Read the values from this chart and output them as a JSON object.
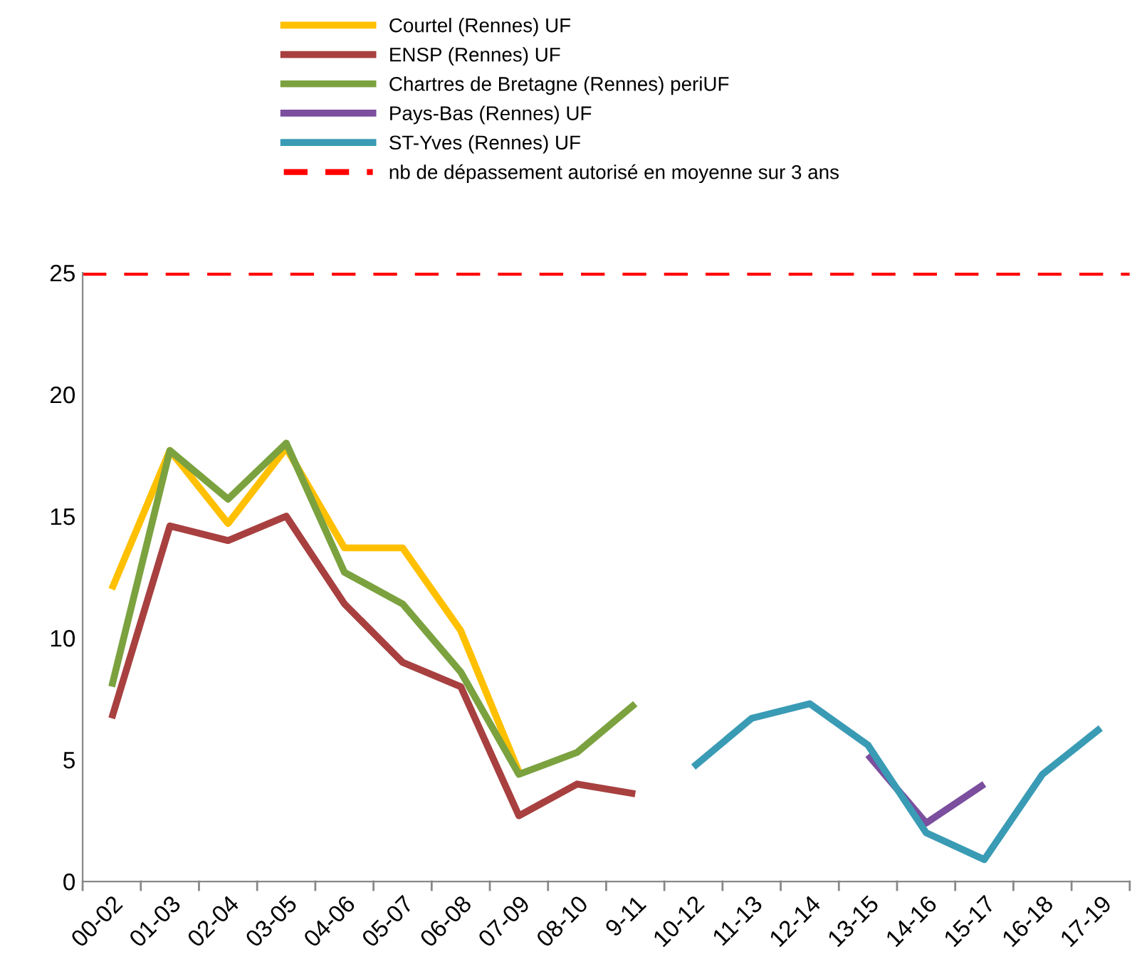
{
  "chart_data": {
    "type": "line",
    "categories": [
      "00-02",
      "01-03",
      "02-04",
      "03-05",
      "04-06",
      "05-07",
      "06-08",
      "07-09",
      "08-10",
      "9-11",
      "10-12",
      "11-13",
      "12-14",
      "13-15",
      "14-16",
      "15-17",
      "16-18",
      "17-19"
    ],
    "series": [
      {
        "name": "Courtel (Rennes) UF",
        "color": "#ffc000",
        "values": [
          12.0,
          17.7,
          14.7,
          17.8,
          13.7,
          13.7,
          10.3,
          4.5,
          null,
          null,
          null,
          null,
          null,
          null,
          null,
          null,
          null,
          null
        ]
      },
      {
        "name": "ENSP (Rennes) UF",
        "color": "#a84040",
        "values": [
          6.7,
          14.6,
          14.0,
          15.0,
          11.4,
          9.0,
          8.0,
          2.7,
          4.0,
          3.6,
          null,
          null,
          null,
          null,
          null,
          null,
          null,
          null
        ]
      },
      {
        "name": "Chartres de Bretagne (Rennes) periUF",
        "color": "#7ba23f",
        "values": [
          8.0,
          17.7,
          15.7,
          18.0,
          12.7,
          11.4,
          8.6,
          4.4,
          5.3,
          7.3,
          null,
          null,
          null,
          null,
          null,
          null,
          null,
          null
        ]
      },
      {
        "name": "Pays-Bas (Rennes) UF",
        "color": "#7b4e9e",
        "values": [
          null,
          null,
          null,
          null,
          null,
          null,
          null,
          null,
          null,
          null,
          null,
          null,
          null,
          5.2,
          2.4,
          4.0,
          null,
          null
        ]
      },
      {
        "name": "ST-Yves (Rennes) UF",
        "color": "#3a9bb5",
        "values": [
          null,
          null,
          null,
          null,
          null,
          null,
          null,
          null,
          null,
          null,
          4.7,
          6.7,
          7.3,
          5.6,
          2.0,
          0.9,
          4.4,
          6.3
        ]
      }
    ],
    "ref_lines": [
      {
        "axis": "y",
        "value": 25,
        "label": "nb de dépassement autorisé en moyenne sur 3 ans",
        "color": "#ff0000",
        "line_style": "dashed"
      }
    ],
    "ylim": [
      0,
      25
    ],
    "yticks": [
      0,
      5,
      10,
      15,
      20,
      25
    ],
    "grid": false,
    "legend": "top",
    "marker": "none",
    "line_style": "solid"
  }
}
